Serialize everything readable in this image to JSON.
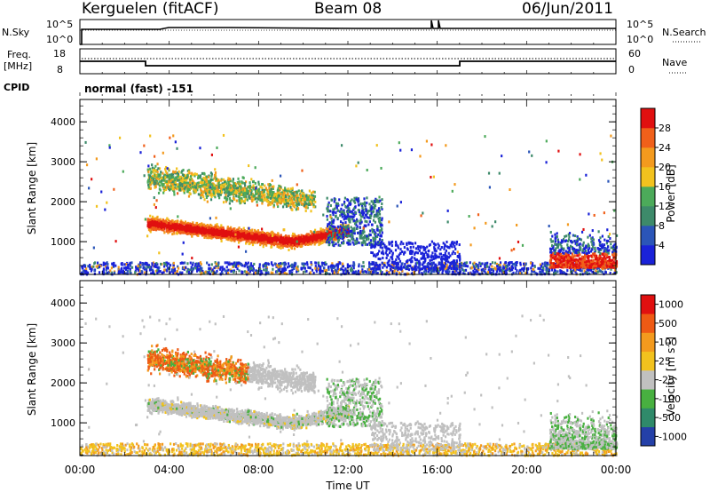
{
  "header": {
    "station": "Kerguelen (fitACF)",
    "beam": "Beam 08",
    "date": "06/Jun/2011"
  },
  "sky_panel": {
    "left_label": "N.Sky",
    "right_label": "N.Search",
    "ticks": [
      "10^5",
      "10^0"
    ]
  },
  "freq_panel": {
    "left_label_1": "Freq.",
    "left_label_2": "[MHz]",
    "right_label": "Nave",
    "left_ticks": [
      "18",
      "8"
    ],
    "right_ticks": [
      "60",
      "0"
    ]
  },
  "cpid": {
    "label": "CPID",
    "value": "normal (fast) -151"
  },
  "colors": {
    "power": [
      "#1a22d8",
      "#2b55b8",
      "#3d8a6a",
      "#4caa5a",
      "#f2c21e",
      "#f39a1e",
      "#f0601a",
      "#e01010"
    ],
    "velocity": [
      "#e01010",
      "#ee5a14",
      "#f39a1e",
      "#f2c21e",
      "#c0c0c0",
      "#48b040",
      "#2f8a6a",
      "#2440a8"
    ],
    "ground_scatter": "#c0c0c0"
  },
  "chart_data": [
    {
      "type": "heatmap",
      "title": "",
      "xlabel": "",
      "ylabel": "Slant Range [km]",
      "x_ticks": [
        "00:00",
        "04:00",
        "08:00",
        "12:00",
        "16:00",
        "20:00",
        "00:00"
      ],
      "xlim_hours": [
        0,
        24
      ],
      "y_ticks": [
        "1000",
        "2000",
        "3000",
        "4000"
      ],
      "ylim_km": [
        180,
        4560
      ],
      "colorbar": {
        "label": "Power [dB]",
        "ticks": [
          "4",
          "8",
          "12",
          "16",
          "20",
          "24",
          "28"
        ],
        "range": [
          0,
          32
        ]
      }
    },
    {
      "type": "heatmap",
      "title": "",
      "xlabel": "Time UT",
      "ylabel": "Slant Range [km]",
      "x_ticks": [
        "00:00",
        "04:00",
        "08:00",
        "12:00",
        "16:00",
        "20:00",
        "00:00"
      ],
      "xlim_hours": [
        0,
        24
      ],
      "y_ticks": [
        "1000",
        "2000",
        "3000",
        "4000"
      ],
      "ylim_km": [
        180,
        4560
      ],
      "colorbar": {
        "label": "Velocity [m s",
        "label_sup": "-1",
        "label_end": "]",
        "ticks": [
          "1000",
          "500",
          "100",
          "25",
          "-25",
          "-100",
          "-500",
          "-1000"
        ]
      }
    }
  ]
}
